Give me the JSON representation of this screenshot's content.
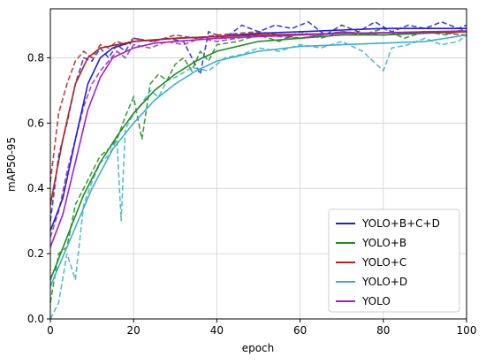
{
  "chart_data": {
    "type": "line",
    "xlabel": "epoch",
    "ylabel": "mAP50-95",
    "xlim": [
      0,
      100
    ],
    "ylim": [
      0,
      0.95
    ],
    "xticks": [
      "0",
      "20",
      "40",
      "60",
      "80",
      "100"
    ],
    "yticks": [
      "0.0",
      "0.2",
      "0.4",
      "0.6",
      "0.8"
    ],
    "grid": true,
    "legend_position": "bottom-right",
    "series": [
      {
        "name": "YOLO+B+C+D",
        "color": "#1f1fd6",
        "smoothed": [
          [
            0,
            0.27
          ],
          [
            3,
            0.37
          ],
          [
            6,
            0.55
          ],
          [
            9,
            0.72
          ],
          [
            12,
            0.8
          ],
          [
            15,
            0.83
          ],
          [
            20,
            0.85
          ],
          [
            25,
            0.855
          ],
          [
            30,
            0.86
          ],
          [
            40,
            0.865
          ],
          [
            50,
            0.875
          ],
          [
            60,
            0.88
          ],
          [
            70,
            0.885
          ],
          [
            80,
            0.89
          ],
          [
            90,
            0.89
          ],
          [
            100,
            0.89
          ]
        ],
        "raw": [
          [
            0,
            0.3
          ],
          [
            2,
            0.5
          ],
          [
            4,
            0.6
          ],
          [
            6,
            0.72
          ],
          [
            8,
            0.8
          ],
          [
            10,
            0.79
          ],
          [
            12,
            0.83
          ],
          [
            14,
            0.8
          ],
          [
            16,
            0.84
          ],
          [
            18,
            0.82
          ],
          [
            20,
            0.86
          ],
          [
            24,
            0.85
          ],
          [
            28,
            0.86
          ],
          [
            32,
            0.85
          ],
          [
            36,
            0.75
          ],
          [
            38,
            0.88
          ],
          [
            42,
            0.86
          ],
          [
            46,
            0.9
          ],
          [
            50,
            0.88
          ],
          [
            54,
            0.9
          ],
          [
            58,
            0.89
          ],
          [
            62,
            0.91
          ],
          [
            66,
            0.87
          ],
          [
            70,
            0.9
          ],
          [
            74,
            0.88
          ],
          [
            78,
            0.91
          ],
          [
            82,
            0.88
          ],
          [
            86,
            0.9
          ],
          [
            90,
            0.89
          ],
          [
            94,
            0.91
          ],
          [
            98,
            0.89
          ],
          [
            100,
            0.9
          ]
        ]
      },
      {
        "name": "YOLO+B",
        "color": "#1f8c1f",
        "smoothed": [
          [
            0,
            0.12
          ],
          [
            4,
            0.25
          ],
          [
            8,
            0.38
          ],
          [
            12,
            0.48
          ],
          [
            16,
            0.56
          ],
          [
            20,
            0.63
          ],
          [
            25,
            0.7
          ],
          [
            30,
            0.75
          ],
          [
            35,
            0.79
          ],
          [
            40,
            0.82
          ],
          [
            50,
            0.85
          ],
          [
            60,
            0.86
          ],
          [
            70,
            0.87
          ],
          [
            80,
            0.87
          ],
          [
            90,
            0.875
          ],
          [
            100,
            0.88
          ]
        ],
        "raw": [
          [
            0,
            0.05
          ],
          [
            2,
            0.2
          ],
          [
            4,
            0.22
          ],
          [
            6,
            0.35
          ],
          [
            8,
            0.4
          ],
          [
            10,
            0.45
          ],
          [
            12,
            0.5
          ],
          [
            14,
            0.52
          ],
          [
            16,
            0.55
          ],
          [
            18,
            0.62
          ],
          [
            20,
            0.68
          ],
          [
            22,
            0.55
          ],
          [
            24,
            0.72
          ],
          [
            26,
            0.75
          ],
          [
            28,
            0.73
          ],
          [
            30,
            0.78
          ],
          [
            32,
            0.8
          ],
          [
            34,
            0.76
          ],
          [
            36,
            0.82
          ],
          [
            38,
            0.79
          ],
          [
            40,
            0.84
          ],
          [
            45,
            0.85
          ],
          [
            50,
            0.87
          ],
          [
            55,
            0.85
          ],
          [
            60,
            0.88
          ],
          [
            65,
            0.86
          ],
          [
            70,
            0.88
          ],
          [
            75,
            0.87
          ],
          [
            80,
            0.89
          ],
          [
            85,
            0.86
          ],
          [
            90,
            0.88
          ],
          [
            95,
            0.87
          ],
          [
            100,
            0.89
          ]
        ]
      },
      {
        "name": "YOLO+C",
        "color": "#b22222",
        "smoothed": [
          [
            0,
            0.35
          ],
          [
            3,
            0.55
          ],
          [
            6,
            0.72
          ],
          [
            9,
            0.8
          ],
          [
            12,
            0.83
          ],
          [
            16,
            0.84
          ],
          [
            20,
            0.85
          ],
          [
            30,
            0.86
          ],
          [
            40,
            0.865
          ],
          [
            50,
            0.87
          ],
          [
            60,
            0.872
          ],
          [
            70,
            0.875
          ],
          [
            80,
            0.877
          ],
          [
            90,
            0.878
          ],
          [
            100,
            0.88
          ]
        ],
        "raw": [
          [
            0,
            0.42
          ],
          [
            2,
            0.63
          ],
          [
            4,
            0.72
          ],
          [
            6,
            0.79
          ],
          [
            8,
            0.82
          ],
          [
            10,
            0.8
          ],
          [
            12,
            0.84
          ],
          [
            14,
            0.83
          ],
          [
            16,
            0.85
          ],
          [
            18,
            0.84
          ],
          [
            20,
            0.86
          ],
          [
            25,
            0.85
          ],
          [
            30,
            0.87
          ],
          [
            35,
            0.86
          ],
          [
            40,
            0.87
          ],
          [
            50,
            0.88
          ],
          [
            60,
            0.86
          ],
          [
            70,
            0.88
          ],
          [
            80,
            0.87
          ],
          [
            90,
            0.88
          ],
          [
            100,
            0.87
          ]
        ]
      },
      {
        "name": "YOLO+D",
        "color": "#3ab0c8",
        "smoothed": [
          [
            0,
            0.1
          ],
          [
            5,
            0.25
          ],
          [
            10,
            0.4
          ],
          [
            15,
            0.52
          ],
          [
            20,
            0.6
          ],
          [
            25,
            0.67
          ],
          [
            30,
            0.72
          ],
          [
            35,
            0.76
          ],
          [
            40,
            0.79
          ],
          [
            50,
            0.82
          ],
          [
            60,
            0.835
          ],
          [
            70,
            0.84
          ],
          [
            80,
            0.845
          ],
          [
            90,
            0.85
          ],
          [
            100,
            0.87
          ]
        ],
        "raw": [
          [
            0,
            0.0
          ],
          [
            2,
            0.05
          ],
          [
            4,
            0.2
          ],
          [
            6,
            0.12
          ],
          [
            8,
            0.35
          ],
          [
            10,
            0.42
          ],
          [
            12,
            0.48
          ],
          [
            14,
            0.5
          ],
          [
            16,
            0.55
          ],
          [
            17,
            0.3
          ],
          [
            18,
            0.58
          ],
          [
            20,
            0.63
          ],
          [
            22,
            0.66
          ],
          [
            24,
            0.7
          ],
          [
            26,
            0.68
          ],
          [
            28,
            0.73
          ],
          [
            30,
            0.74
          ],
          [
            34,
            0.77
          ],
          [
            38,
            0.76
          ],
          [
            42,
            0.8
          ],
          [
            46,
            0.81
          ],
          [
            50,
            0.83
          ],
          [
            55,
            0.82
          ],
          [
            60,
            0.84
          ],
          [
            65,
            0.83
          ],
          [
            70,
            0.85
          ],
          [
            75,
            0.82
          ],
          [
            80,
            0.76
          ],
          [
            82,
            0.83
          ],
          [
            86,
            0.84
          ],
          [
            90,
            0.86
          ],
          [
            94,
            0.84
          ],
          [
            98,
            0.85
          ],
          [
            100,
            0.87
          ]
        ]
      },
      {
        "name": "YOLO",
        "color": "#a020c8",
        "smoothed": [
          [
            0,
            0.22
          ],
          [
            3,
            0.32
          ],
          [
            6,
            0.48
          ],
          [
            9,
            0.64
          ],
          [
            12,
            0.74
          ],
          [
            15,
            0.8
          ],
          [
            20,
            0.83
          ],
          [
            25,
            0.845
          ],
          [
            30,
            0.85
          ],
          [
            40,
            0.86
          ],
          [
            50,
            0.865
          ],
          [
            60,
            0.87
          ],
          [
            70,
            0.875
          ],
          [
            80,
            0.877
          ],
          [
            90,
            0.88
          ],
          [
            100,
            0.882
          ]
        ],
        "raw": [
          [
            0,
            0.25
          ],
          [
            2,
            0.33
          ],
          [
            4,
            0.45
          ],
          [
            6,
            0.55
          ],
          [
            8,
            0.65
          ],
          [
            10,
            0.72
          ],
          [
            12,
            0.76
          ],
          [
            14,
            0.79
          ],
          [
            16,
            0.82
          ],
          [
            18,
            0.8
          ],
          [
            20,
            0.84
          ],
          [
            24,
            0.83
          ],
          [
            28,
            0.85
          ],
          [
            32,
            0.84
          ],
          [
            36,
            0.86
          ],
          [
            40,
            0.85
          ],
          [
            50,
            0.87
          ],
          [
            60,
            0.86
          ],
          [
            70,
            0.88
          ],
          [
            80,
            0.87
          ],
          [
            90,
            0.88
          ],
          [
            100,
            0.88
          ]
        ]
      }
    ]
  }
}
